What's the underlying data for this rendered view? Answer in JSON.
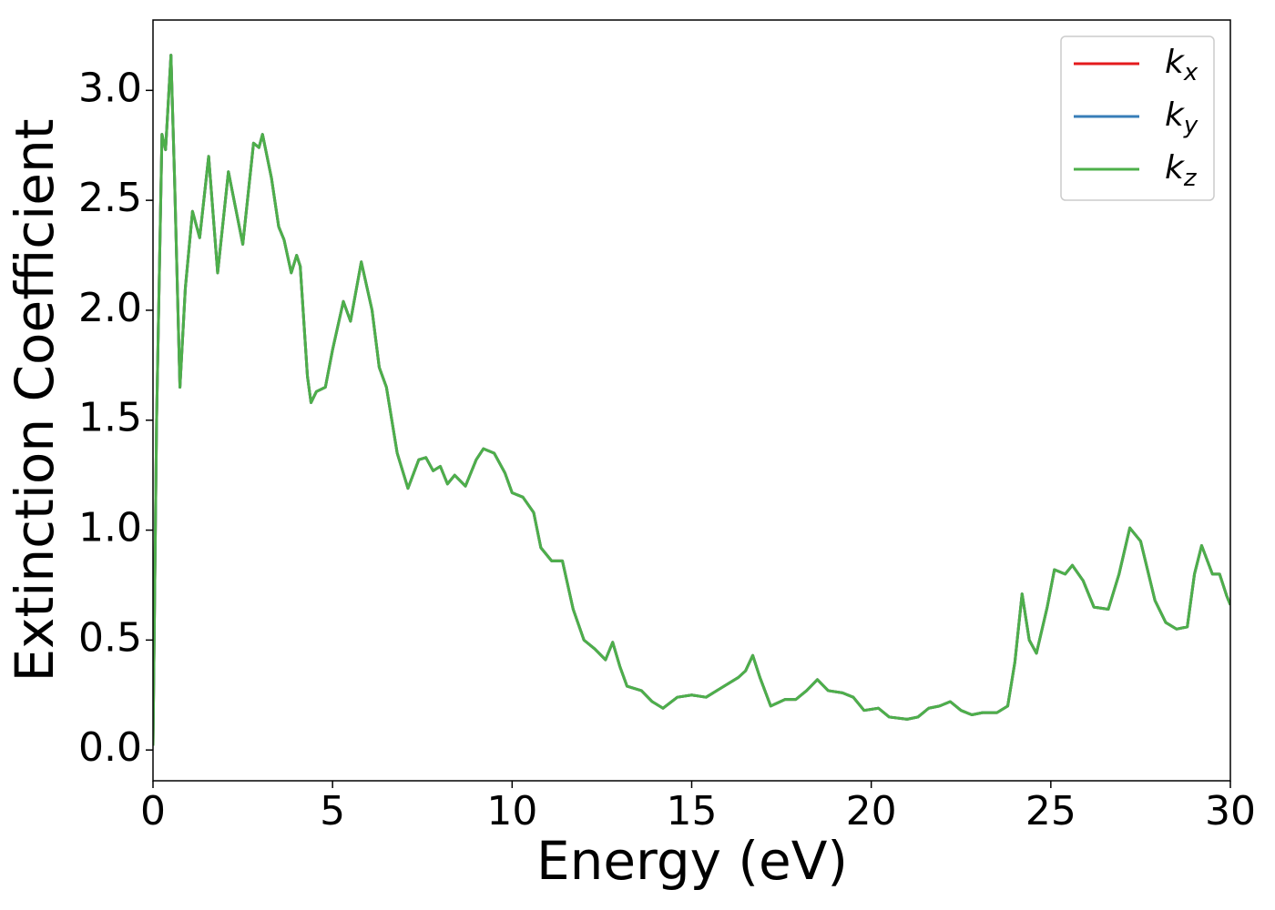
{
  "chart_data": {
    "type": "line",
    "x_label": "Energy (eV)",
    "y_label": "Extinction Coefficient",
    "x": [
      0,
      0.1,
      0.25,
      0.35,
      0.5,
      0.6,
      0.75,
      0.9,
      1.1,
      1.3,
      1.55,
      1.8,
      2.1,
      2.5,
      2.8,
      2.95,
      3.05,
      3.3,
      3.5,
      3.65,
      3.85,
      4.0,
      4.1,
      4.3,
      4.4,
      4.55,
      4.8,
      5.0,
      5.3,
      5.5,
      5.8,
      6.1,
      6.3,
      6.5,
      6.8,
      7.1,
      7.4,
      7.6,
      7.8,
      8.0,
      8.2,
      8.4,
      8.7,
      9.0,
      9.2,
      9.5,
      9.8,
      10.0,
      10.3,
      10.6,
      10.8,
      11.1,
      11.4,
      11.7,
      12.0,
      12.3,
      12.6,
      12.8,
      13.0,
      13.2,
      13.6,
      13.9,
      14.2,
      14.6,
      15.0,
      15.4,
      15.8,
      16.3,
      16.5,
      16.7,
      16.9,
      17.2,
      17.6,
      17.9,
      18.2,
      18.5,
      18.8,
      19.2,
      19.5,
      19.8,
      20.2,
      20.5,
      21.0,
      21.3,
      21.6,
      21.9,
      22.2,
      22.5,
      22.8,
      23.1,
      23.5,
      23.8,
      24.0,
      24.2,
      24.4,
      24.6,
      24.9,
      25.1,
      25.4,
      25.6,
      25.9,
      26.2,
      26.6,
      26.9,
      27.2,
      27.5,
      27.9,
      28.2,
      28.5,
      28.8,
      29.0,
      29.2,
      29.5,
      29.7,
      29.9,
      30.0
    ],
    "series": [
      {
        "name": "kx",
        "color": "#e41a1c",
        "values": [
          0.02,
          1.5,
          2.8,
          2.73,
          3.16,
          2.6,
          1.65,
          2.1,
          2.45,
          2.33,
          2.7,
          2.17,
          2.63,
          2.3,
          2.76,
          2.74,
          2.8,
          2.6,
          2.38,
          2.32,
          2.17,
          2.25,
          2.2,
          1.7,
          1.58,
          1.63,
          1.65,
          1.82,
          2.04,
          1.95,
          2.22,
          2.0,
          1.74,
          1.65,
          1.35,
          1.19,
          1.32,
          1.33,
          1.27,
          1.29,
          1.21,
          1.25,
          1.2,
          1.32,
          1.37,
          1.35,
          1.26,
          1.17,
          1.15,
          1.08,
          0.92,
          0.86,
          0.86,
          0.64,
          0.5,
          0.46,
          0.41,
          0.49,
          0.38,
          0.29,
          0.27,
          0.22,
          0.19,
          0.24,
          0.25,
          0.24,
          0.28,
          0.33,
          0.36,
          0.43,
          0.33,
          0.2,
          0.23,
          0.23,
          0.27,
          0.32,
          0.27,
          0.26,
          0.24,
          0.18,
          0.19,
          0.15,
          0.14,
          0.15,
          0.19,
          0.2,
          0.22,
          0.18,
          0.16,
          0.17,
          0.17,
          0.2,
          0.4,
          0.71,
          0.5,
          0.44,
          0.65,
          0.82,
          0.8,
          0.84,
          0.77,
          0.65,
          0.64,
          0.8,
          1.01,
          0.95,
          0.68,
          0.58,
          0.55,
          0.56,
          0.8,
          0.93,
          0.8,
          0.8,
          0.7,
          0.66
        ]
      },
      {
        "name": "ky",
        "color": "#377eb8",
        "values": [
          0.02,
          1.5,
          2.8,
          2.73,
          3.16,
          2.6,
          1.65,
          2.1,
          2.45,
          2.33,
          2.7,
          2.17,
          2.63,
          2.3,
          2.76,
          2.74,
          2.8,
          2.6,
          2.38,
          2.32,
          2.17,
          2.25,
          2.2,
          1.7,
          1.58,
          1.63,
          1.65,
          1.82,
          2.04,
          1.95,
          2.22,
          2.0,
          1.74,
          1.65,
          1.35,
          1.19,
          1.32,
          1.33,
          1.27,
          1.29,
          1.21,
          1.25,
          1.2,
          1.32,
          1.37,
          1.35,
          1.26,
          1.17,
          1.15,
          1.08,
          0.92,
          0.86,
          0.86,
          0.64,
          0.5,
          0.46,
          0.41,
          0.49,
          0.38,
          0.29,
          0.27,
          0.22,
          0.19,
          0.24,
          0.25,
          0.24,
          0.28,
          0.33,
          0.36,
          0.43,
          0.33,
          0.2,
          0.23,
          0.23,
          0.27,
          0.32,
          0.27,
          0.26,
          0.24,
          0.18,
          0.19,
          0.15,
          0.14,
          0.15,
          0.19,
          0.2,
          0.22,
          0.18,
          0.16,
          0.17,
          0.17,
          0.2,
          0.4,
          0.71,
          0.5,
          0.44,
          0.65,
          0.82,
          0.8,
          0.84,
          0.77,
          0.65,
          0.64,
          0.8,
          1.01,
          0.95,
          0.68,
          0.58,
          0.55,
          0.56,
          0.8,
          0.93,
          0.8,
          0.8,
          0.7,
          0.66
        ]
      },
      {
        "name": "kz",
        "color": "#4daf4a",
        "values": [
          0.02,
          1.5,
          2.8,
          2.73,
          3.16,
          2.6,
          1.65,
          2.1,
          2.45,
          2.33,
          2.7,
          2.17,
          2.63,
          2.3,
          2.76,
          2.74,
          2.8,
          2.6,
          2.38,
          2.32,
          2.17,
          2.25,
          2.2,
          1.7,
          1.58,
          1.63,
          1.65,
          1.82,
          2.04,
          1.95,
          2.22,
          2.0,
          1.74,
          1.65,
          1.35,
          1.19,
          1.32,
          1.33,
          1.27,
          1.29,
          1.21,
          1.25,
          1.2,
          1.32,
          1.37,
          1.35,
          1.26,
          1.17,
          1.15,
          1.08,
          0.92,
          0.86,
          0.86,
          0.64,
          0.5,
          0.46,
          0.41,
          0.49,
          0.38,
          0.29,
          0.27,
          0.22,
          0.19,
          0.24,
          0.25,
          0.24,
          0.28,
          0.33,
          0.36,
          0.43,
          0.33,
          0.2,
          0.23,
          0.23,
          0.27,
          0.32,
          0.27,
          0.26,
          0.24,
          0.18,
          0.19,
          0.15,
          0.14,
          0.15,
          0.19,
          0.2,
          0.22,
          0.18,
          0.16,
          0.17,
          0.17,
          0.2,
          0.4,
          0.71,
          0.5,
          0.44,
          0.65,
          0.82,
          0.8,
          0.84,
          0.77,
          0.65,
          0.64,
          0.8,
          1.01,
          0.95,
          0.68,
          0.58,
          0.55,
          0.56,
          0.8,
          0.93,
          0.8,
          0.8,
          0.7,
          0.66
        ]
      }
    ],
    "xlim": [
      0,
      30
    ],
    "xticks": [
      0,
      5,
      10,
      15,
      20,
      25,
      30
    ],
    "ylim": [
      -0.14,
      3.32
    ],
    "yticks": [
      {
        "value": 0,
        "label": "0.0"
      },
      0.5,
      {
        "value": 1,
        "label": "1.0"
      },
      1.5,
      {
        "value": 2,
        "label": "2.0"
      },
      2.5,
      {
        "value": 3,
        "label": "3.0"
      }
    ],
    "legend": "upper right",
    "grid": false
  }
}
